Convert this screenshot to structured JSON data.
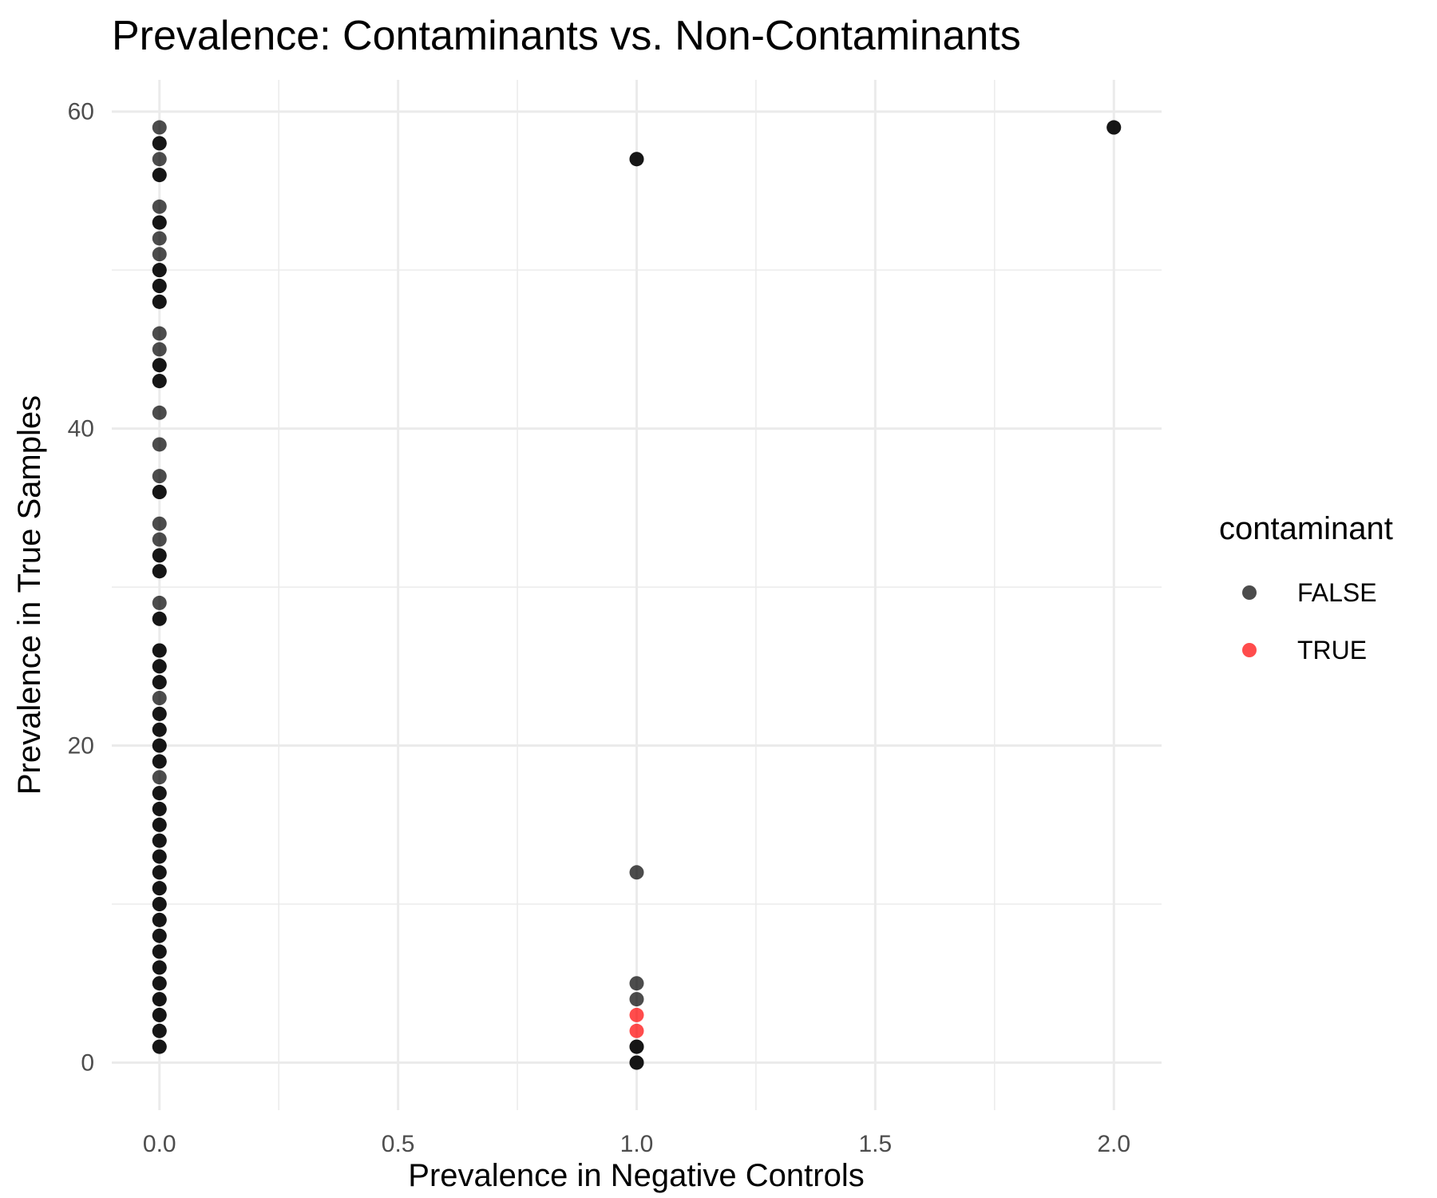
{
  "chart_data": {
    "type": "scatter",
    "title": "Prevalence: Contaminants vs. Non-Contaminants",
    "xlabel": "Prevalence in Negative Controls",
    "ylabel": "Prevalence in True Samples",
    "xlim": [
      -0.1,
      2.1
    ],
    "ylim": [
      -3,
      62
    ],
    "x_ticks": [
      0.0,
      0.5,
      1.0,
      1.5,
      2.0
    ],
    "x_tick_labels": [
      "0.0",
      "0.5",
      "1.0",
      "1.5",
      "2.0"
    ],
    "y_ticks": [
      0,
      20,
      40,
      60
    ],
    "y_tick_labels": [
      "0",
      "20",
      "40",
      "60"
    ],
    "grid": true,
    "legend": {
      "title": "contaminant",
      "position": "right",
      "entries": [
        {
          "label": "FALSE",
          "color": "#000000"
        },
        {
          "label": "TRUE",
          "color": "#ff0000"
        }
      ]
    },
    "point_alpha": 0.7,
    "series": [
      {
        "name": "FALSE",
        "color": "#000000",
        "points": [
          [
            0,
            1
          ],
          [
            0,
            1
          ],
          [
            0,
            2
          ],
          [
            0,
            2
          ],
          [
            0,
            3
          ],
          [
            0,
            3
          ],
          [
            0,
            4
          ],
          [
            0,
            4
          ],
          [
            0,
            5
          ],
          [
            0,
            5
          ],
          [
            0,
            6
          ],
          [
            0,
            6
          ],
          [
            0,
            7
          ],
          [
            0,
            7
          ],
          [
            0,
            8
          ],
          [
            0,
            8
          ],
          [
            0,
            9
          ],
          [
            0,
            9
          ],
          [
            0,
            10
          ],
          [
            0,
            10
          ],
          [
            0,
            11
          ],
          [
            0,
            11
          ],
          [
            0,
            12
          ],
          [
            0,
            12
          ],
          [
            0,
            13
          ],
          [
            0,
            13
          ],
          [
            0,
            14
          ],
          [
            0,
            14
          ],
          [
            0,
            15
          ],
          [
            0,
            15
          ],
          [
            0,
            16
          ],
          [
            0,
            16
          ],
          [
            0,
            17
          ],
          [
            0,
            17
          ],
          [
            0,
            18
          ],
          [
            0,
            19
          ],
          [
            0,
            19
          ],
          [
            0,
            20
          ],
          [
            0,
            20
          ],
          [
            0,
            21
          ],
          [
            0,
            21
          ],
          [
            0,
            22
          ],
          [
            0,
            22
          ],
          [
            0,
            23
          ],
          [
            0,
            24
          ],
          [
            0,
            24
          ],
          [
            0,
            25
          ],
          [
            0,
            25
          ],
          [
            0,
            26
          ],
          [
            0,
            26
          ],
          [
            0,
            28
          ],
          [
            0,
            28
          ],
          [
            0,
            29
          ],
          [
            0,
            31
          ],
          [
            0,
            31
          ],
          [
            0,
            32
          ],
          [
            0,
            32
          ],
          [
            0,
            33
          ],
          [
            0,
            34
          ],
          [
            0,
            36
          ],
          [
            0,
            36
          ],
          [
            0,
            37
          ],
          [
            0,
            39
          ],
          [
            0,
            41
          ],
          [
            0,
            43
          ],
          [
            0,
            43
          ],
          [
            0,
            44
          ],
          [
            0,
            44
          ],
          [
            0,
            45
          ],
          [
            0,
            46
          ],
          [
            0,
            48
          ],
          [
            0,
            48
          ],
          [
            0,
            49
          ],
          [
            0,
            49
          ],
          [
            0,
            50
          ],
          [
            0,
            50
          ],
          [
            0,
            51
          ],
          [
            0,
            52
          ],
          [
            0,
            53
          ],
          [
            0,
            53
          ],
          [
            0,
            54
          ],
          [
            0,
            56
          ],
          [
            0,
            56
          ],
          [
            0,
            57
          ],
          [
            0,
            58
          ],
          [
            0,
            58
          ],
          [
            0,
            59
          ],
          [
            1,
            0
          ],
          [
            1,
            0
          ],
          [
            1,
            1
          ],
          [
            1,
            1
          ],
          [
            1,
            4
          ],
          [
            1,
            5
          ],
          [
            1,
            12
          ],
          [
            1,
            57
          ],
          [
            1,
            57
          ],
          [
            2,
            59
          ],
          [
            2,
            59
          ]
        ]
      },
      {
        "name": "TRUE",
        "color": "#ff0000",
        "points": [
          [
            1,
            2
          ],
          [
            1,
            3
          ]
        ]
      }
    ]
  }
}
